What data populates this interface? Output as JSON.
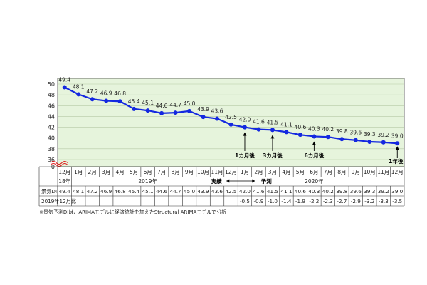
{
  "chart_data": {
    "type": "line",
    "categories": [
      "12月",
      "1月",
      "2月",
      "3月",
      "4月",
      "5月",
      "6月",
      "7月",
      "8月",
      "9月",
      "10月",
      "11月",
      "12月",
      "1月",
      "2月",
      "3月",
      "4月",
      "5月",
      "6月",
      "7月",
      "8月",
      "9月",
      "10月",
      "11月",
      "12月"
    ],
    "series": [
      {
        "values": [
          49.4,
          48.1,
          47.2,
          46.9,
          46.8,
          45.4,
          45.1,
          44.6,
          44.7,
          45.0,
          43.9,
          43.6,
          42.5,
          42.0,
          41.6,
          41.5,
          41.1,
          40.6,
          40.3,
          40.2,
          39.8,
          39.6,
          39.3,
          39.2,
          39.0
        ]
      }
    ],
    "value_labels": [
      "49.4",
      "48.1",
      "47.2",
      "46.9",
      "46.8",
      "45.4",
      "45.1",
      "44.6",
      "44.7",
      "45.0",
      "43.9",
      "43.6",
      "42.5",
      "42.0",
      "41.6",
      "41.5",
      "41.1",
      "40.6",
      "40.3",
      "40.2",
      "39.8",
      "39.6",
      "39.3",
      "39.2",
      "39.0"
    ],
    "ylim": [
      36,
      50
    ],
    "y_ticks": [
      "50",
      "48",
      "46",
      "44",
      "42",
      "40",
      "38",
      "36",
      "0"
    ],
    "y_break": true,
    "grid": true,
    "years": [
      {
        "label": "18年",
        "index": 0
      },
      {
        "label": "2019年",
        "index": 6
      },
      {
        "label": "2020年",
        "index": 18
      }
    ],
    "phase_labels": {
      "actual": "実績",
      "forecast": "予測"
    },
    "forecast_start_index": 13,
    "annotations": [
      {
        "label": "1カ月後",
        "index": 13
      },
      {
        "label": "3カ月後",
        "index": 15
      },
      {
        "label": "6カ月後",
        "index": 18
      },
      {
        "label": "1年後",
        "index": 24
      }
    ],
    "table_rows": [
      {
        "header": "景気DI",
        "values": [
          "49.4",
          "48.1",
          "47.2",
          "46.9",
          "46.8",
          "45.4",
          "45.1",
          "44.6",
          "44.7",
          "45.0",
          "43.9",
          "43.6",
          "42.5",
          "42.0",
          "41.6",
          "41.5",
          "41.1",
          "40.6",
          "40.3",
          "40.2",
          "39.8",
          "39.6",
          "39.3",
          "39.2",
          "39.0"
        ]
      },
      {
        "header": "2019年12月比",
        "values": [
          "",
          "",
          "",
          "",
          "",
          "",
          "",
          "",
          "",
          "",
          "",
          "",
          "",
          "-0.5",
          "-0.9",
          "-1.0",
          "-1.4",
          "-1.9",
          "-2.2",
          "-2.3",
          "-2.7",
          "-2.9",
          "-3.2",
          "-3.3",
          "-3.5"
        ]
      }
    ],
    "footnote": "※景気予測DIは、ARIMAモデルに経済統計を加えたStructural ARIMAモデルで分析",
    "colors": {
      "line": "#1428e0",
      "plot_bg": "#e6f4dc",
      "grid": "#b6c9a6",
      "frame": "#4a4a4a",
      "break_mark": "#e02020"
    }
  }
}
